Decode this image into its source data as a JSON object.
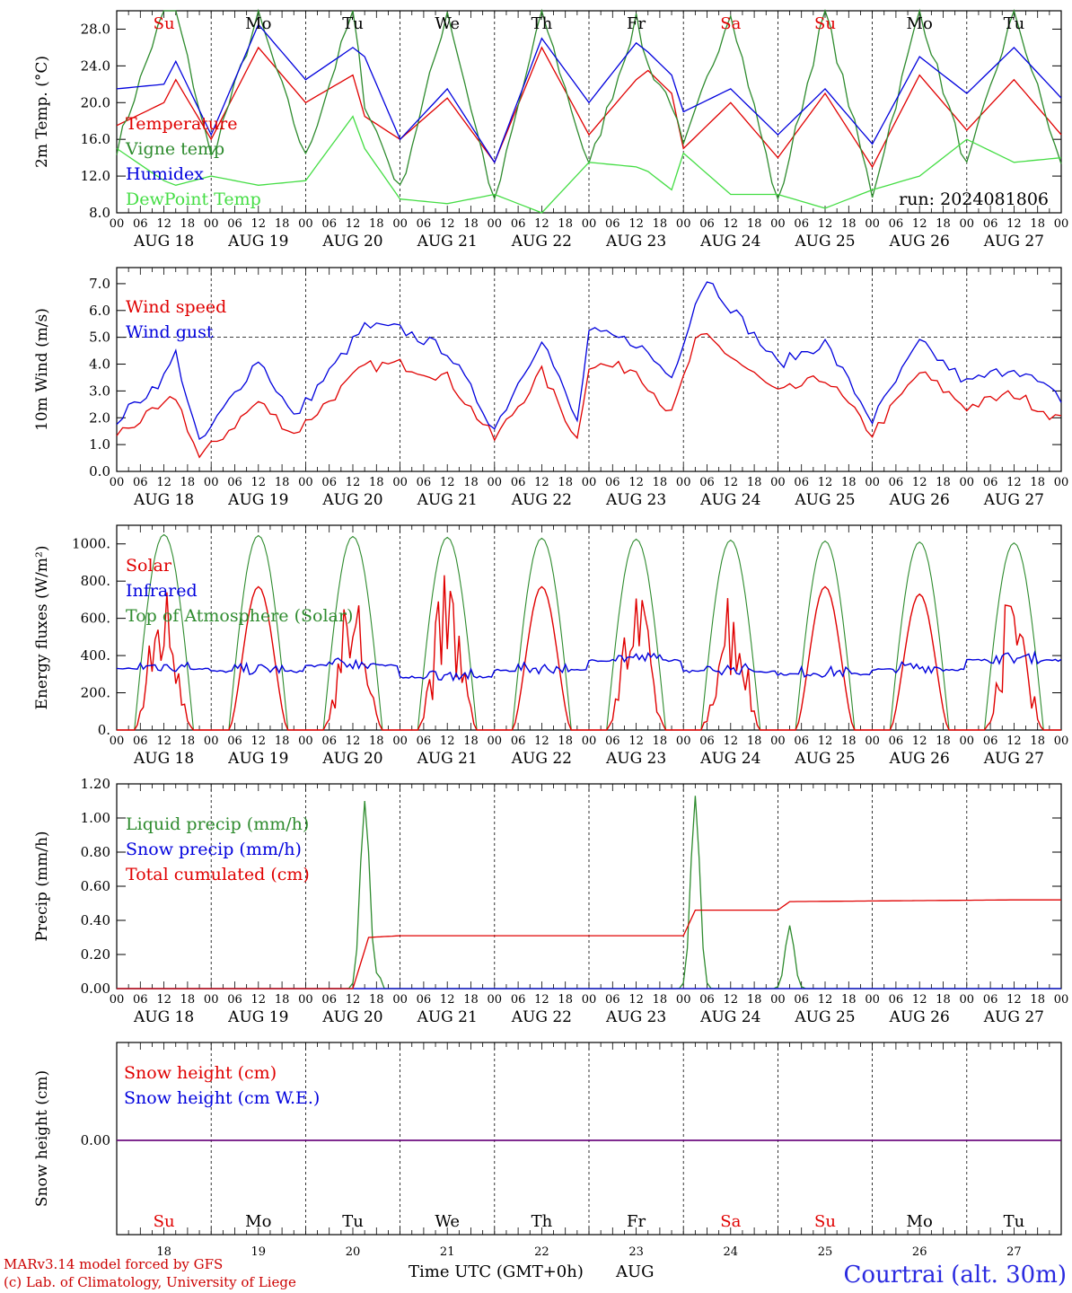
{
  "chart_data": [
    {
      "type": "line",
      "ylabel": "2m Temp. (°C)",
      "ylim": [
        8.0,
        30.0
      ],
      "yticks": [
        "8.0",
        "12.0",
        "16.0",
        "20.0",
        "24.0",
        "28.0"
      ],
      "ytick_values": [
        8,
        12,
        16,
        20,
        24,
        28
      ],
      "annotation": "run: 2024081806",
      "x_hours": [
        0,
        12,
        15,
        24,
        36,
        48,
        60,
        63,
        72,
        84,
        96,
        108,
        120,
        132,
        135,
        141,
        144,
        156,
        168,
        180,
        192,
        204,
        216,
        228,
        240
      ],
      "series": [
        {
          "name": "Temperature",
          "color": "#e00000",
          "values": [
            17.5,
            20,
            22.5,
            16,
            26,
            20,
            23,
            18.5,
            16,
            20.5,
            13.5,
            26,
            16.5,
            22.5,
            23.5,
            21,
            15,
            20,
            14,
            21,
            13,
            23,
            17,
            22.5,
            16.5
          ]
        },
        {
          "name": "Vigne temp",
          "color": "#2e8b2e",
          "values": [
            15,
            30,
            30,
            14,
            29.5,
            14,
            30,
            20,
            10.5,
            30,
            9,
            30,
            13,
            29,
            24,
            20,
            15,
            30,
            9,
            30,
            10,
            30,
            13,
            30,
            13
          ]
        },
        {
          "name": "Humidex",
          "color": "#0000dd",
          "values": [
            21.5,
            22,
            24.5,
            16.5,
            28.5,
            22.5,
            26,
            25,
            16,
            21.5,
            13.5,
            27,
            20,
            26.5,
            25.5,
            23,
            19,
            21.5,
            16.5,
            21.5,
            15.5,
            25,
            21,
            26,
            20.5
          ]
        },
        {
          "name": "DewPoint Temp",
          "color": "#44dd44",
          "values": [
            15,
            11.5,
            11,
            12,
            11,
            11.5,
            18.5,
            15,
            9.5,
            9,
            10,
            8,
            13.5,
            13,
            12.5,
            10.5,
            14.5,
            10,
            10,
            8.5,
            10.5,
            12,
            16,
            13.5,
            14
          ]
        }
      ]
    },
    {
      "type": "line",
      "ylabel": "10m Wind (m/s)",
      "ylim": [
        0,
        7.6
      ],
      "yticks": [
        "0.0",
        "1.0",
        "2.0",
        "3.0",
        "4.0",
        "5.0",
        "6.0",
        "7.0"
      ],
      "ytick_values": [
        0,
        1,
        2,
        3,
        4,
        5,
        6,
        7
      ],
      "reference_line": 5.0,
      "x_hours": [
        0,
        12,
        15,
        21,
        36,
        45,
        63,
        72,
        84,
        96,
        108,
        117,
        120,
        132,
        141,
        147,
        150,
        168,
        180,
        192,
        204,
        216,
        228,
        240
      ],
      "series": [
        {
          "name": "Wind speed",
          "color": "#e00000",
          "values": [
            1.4,
            2.4,
            2.8,
            0.5,
            2.6,
            1.4,
            3.9,
            4,
            3.5,
            1.2,
            3.7,
            1.2,
            4,
            3.8,
            2.1,
            4.8,
            5,
            2.9,
            3.5,
            1.4,
            3.7,
            2.4,
            2.9,
            1.9
          ]
        },
        {
          "name": "Wind gust",
          "color": "#0000dd",
          "values": [
            1.9,
            3.5,
            4.4,
            1,
            4.2,
            2,
            5.4,
            5.3,
            4.5,
            1.6,
            5,
            1.8,
            5.2,
            4.8,
            3.5,
            6.3,
            7.2,
            4,
            4.8,
            1.9,
            4.8,
            3.3,
            3.9,
            2.7
          ]
        }
      ]
    },
    {
      "type": "line",
      "ylabel": "Energy fluxes (W/m²)",
      "ylim": [
        0,
        1100
      ],
      "yticks": [
        "0.",
        "200.",
        "400.",
        "600.",
        "800.",
        "1000."
      ],
      "ytick_values": [
        0,
        200,
        400,
        600,
        800,
        1000
      ],
      "series": [
        {
          "name": "Solar",
          "color": "#e00000",
          "peaks": [
            750,
            770,
            740,
            780,
            770,
            700,
            760,
            770,
            730,
            750
          ]
        },
        {
          "name": "Infrared",
          "color": "#0000dd",
          "values": [
            330,
            315,
            345,
            285,
            320,
            375,
            315,
            300,
            325,
            375
          ]
        },
        {
          "name": "Top of Atmosphere (Solar)",
          "color": "#2e8b2e",
          "peaks": [
            1050,
            1045,
            1040,
            1035,
            1030,
            1025,
            1020,
            1015,
            1010,
            1005
          ]
        }
      ]
    },
    {
      "type": "line",
      "ylabel": "Precip (mm/h)",
      "ylim": [
        0,
        1.2
      ],
      "yticks": [
        "0.00",
        "0.20",
        "0.40",
        "0.60",
        "0.80",
        "1.00",
        "1.20"
      ],
      "ytick_values": [
        0,
        0.2,
        0.4,
        0.6,
        0.8,
        1.0,
        1.2
      ],
      "x_hours": [
        0,
        60,
        64,
        72,
        144,
        147,
        168,
        171,
        228,
        240
      ],
      "series": [
        {
          "name": "Liquid precip (mm/h)",
          "color": "#2e8b2e",
          "spikes": [
            [
              63,
              1.1
            ],
            [
              147,
              1.13
            ],
            [
              171,
              0.37
            ]
          ]
        },
        {
          "name": "Snow precip (mm/h)",
          "color": "#0000dd",
          "values": [
            0,
            0,
            0,
            0,
            0,
            0,
            0,
            0,
            0,
            0
          ]
        },
        {
          "name": "Total cumulated (cm)",
          "color": "#e00000",
          "values": [
            0,
            0,
            0.3,
            0.31,
            0.31,
            0.46,
            0.46,
            0.51,
            0.52,
            0.52
          ]
        }
      ]
    },
    {
      "type": "line",
      "ylabel": "Snow height (cm)",
      "yticks": [
        "0.00"
      ],
      "ytick_values": [
        0
      ],
      "series": [
        {
          "name": "Snow height (cm)",
          "color": "#e00000",
          "values": [
            0,
            0
          ]
        },
        {
          "name": "Snow height (cm W.E.)",
          "color": "#0000dd",
          "values": [
            0,
            0
          ]
        }
      ]
    }
  ],
  "x_axis": {
    "hours": [
      "00",
      "06",
      "12",
      "18"
    ],
    "dates": [
      "AUG 18",
      "AUG 19",
      "AUG 20",
      "AUG 21",
      "AUG 22",
      "AUG 23",
      "AUG 24",
      "AUG 25",
      "AUG 26",
      "AUG 27"
    ],
    "days": [
      {
        "name": "Su",
        "color": "#e00000"
      },
      {
        "name": "Mo",
        "color": "#000000"
      },
      {
        "name": "Tu",
        "color": "#000000"
      },
      {
        "name": "We",
        "color": "#000000"
      },
      {
        "name": "Th",
        "color": "#000000"
      },
      {
        "name": "Fr",
        "color": "#000000"
      },
      {
        "name": "Sa",
        "color": "#e00000"
      },
      {
        "name": "Su",
        "color": "#e00000"
      },
      {
        "name": "Mo",
        "color": "#000000"
      },
      {
        "name": "Tu",
        "color": "#000000"
      }
    ],
    "day_numbers": [
      "18",
      "19",
      "20",
      "21",
      "22",
      "23",
      "24",
      "25",
      "26",
      "27"
    ],
    "bottom_label": "Time UTC (GMT+0h)",
    "month": "AUG"
  },
  "footer": {
    "model": "MARv3.14 model forced by GFS",
    "credit": "(c) Lab. of Climatology, University of Liege",
    "station": "Courtrai (alt. 30m)"
  }
}
